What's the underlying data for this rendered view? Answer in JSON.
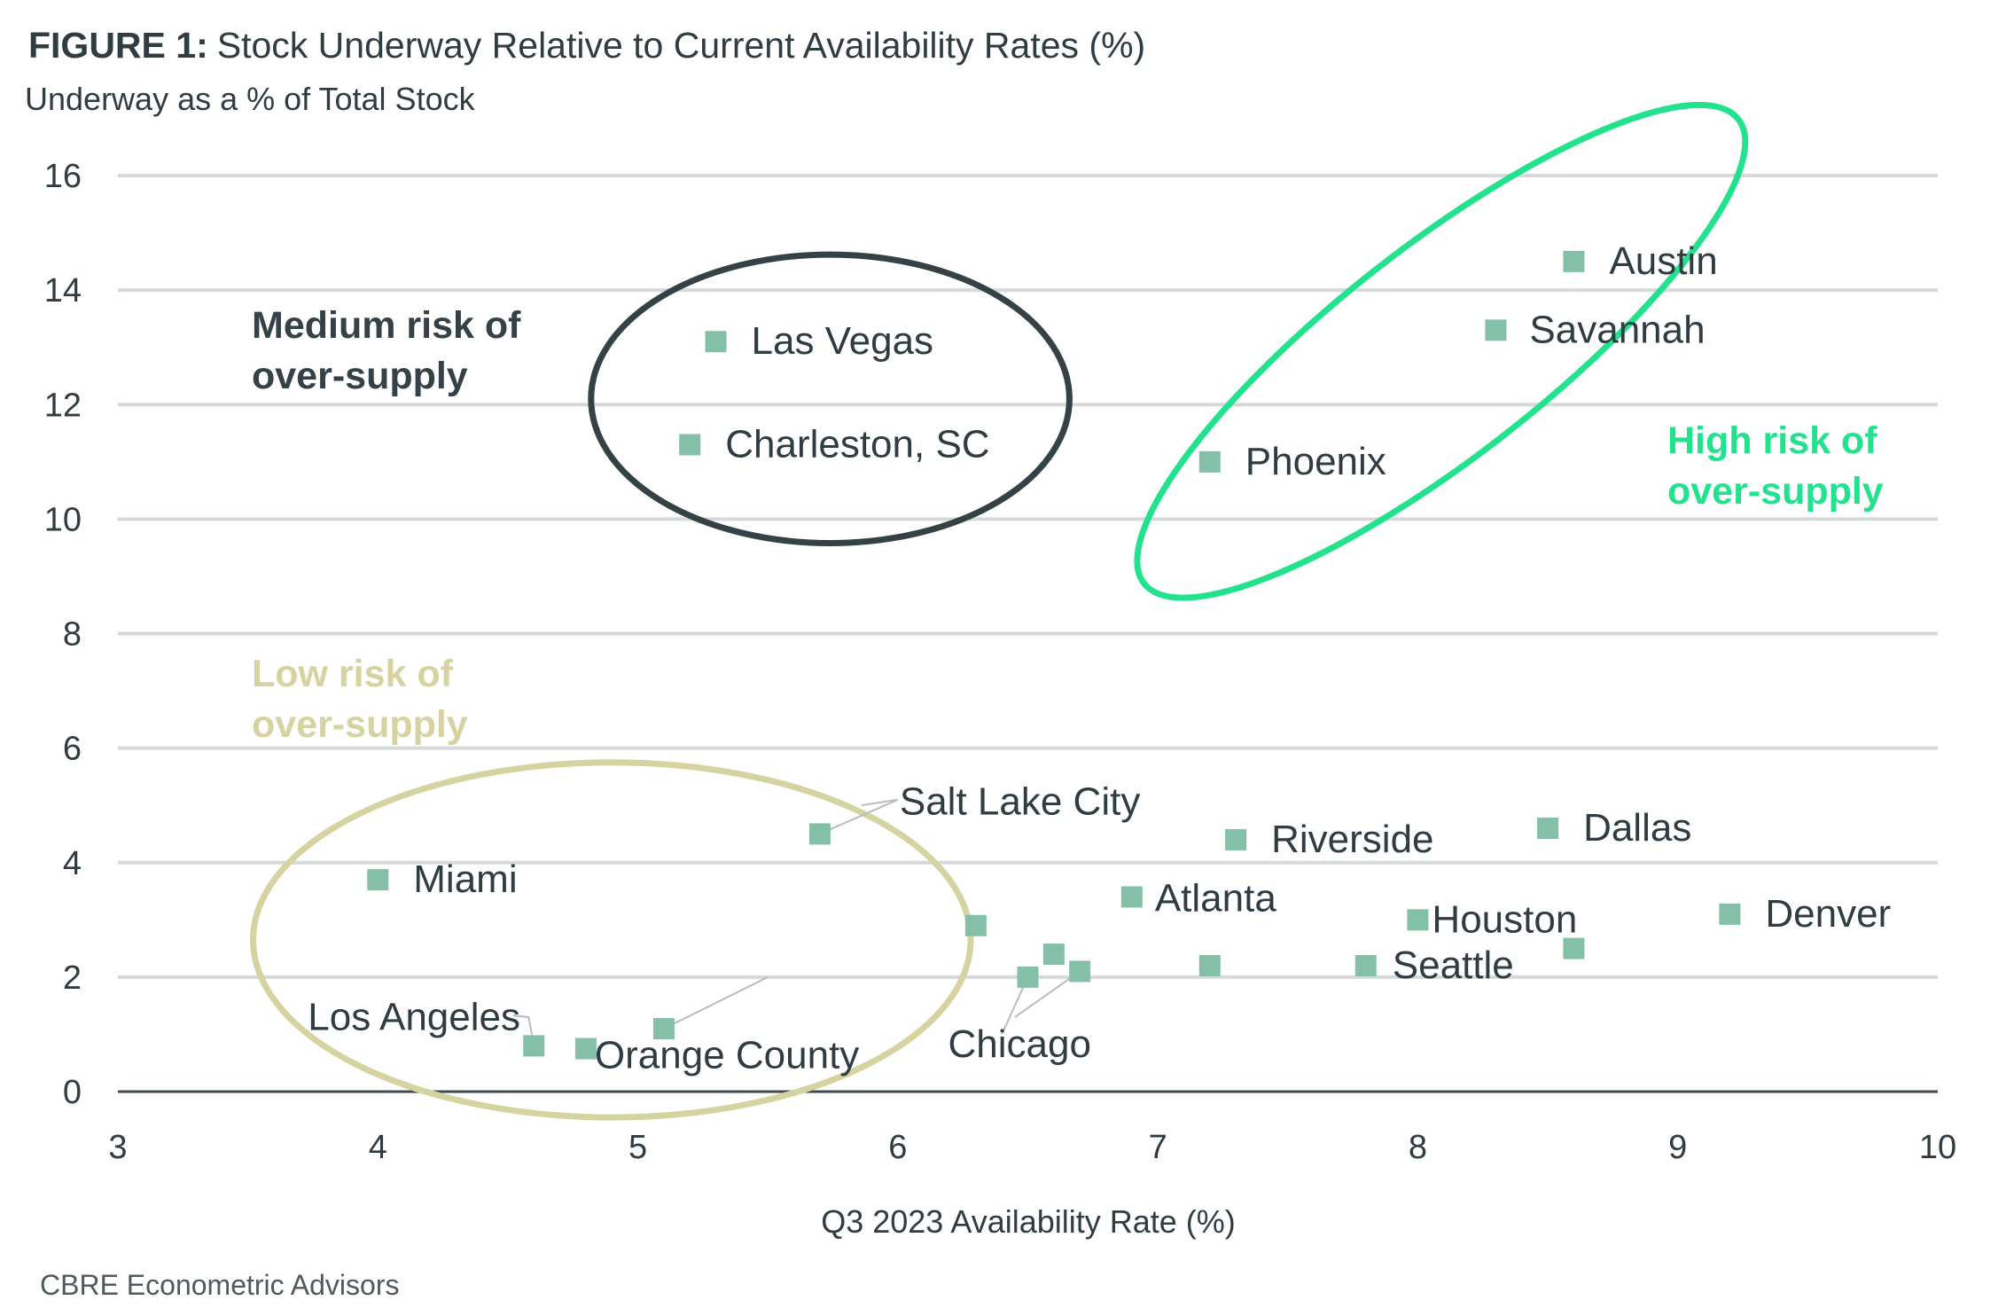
{
  "header": {
    "figure_label": "FIGURE 1:",
    "title": "Stock Underway Relative to Current Availability Rates (%)",
    "subtitle": "Underway as a % of Total Stock"
  },
  "source": "CBRE Econometric Advisors",
  "chart_data": {
    "type": "scatter",
    "title": "Stock Underway Relative to Current Availability Rates (%)",
    "ylabel": "Underway as a % of Total Stock",
    "xlabel": "Q3 2023 Availability Rate (%)",
    "xlim": [
      3,
      10
    ],
    "ylim": [
      0,
      16
    ],
    "xticks": [
      3,
      4,
      5,
      6,
      7,
      8,
      9,
      10
    ],
    "yticks": [
      0,
      2,
      4,
      6,
      8,
      10,
      12,
      14,
      16
    ],
    "grid": true,
    "marker_color": "#84bfa8",
    "points": [
      {
        "label": "Austin",
        "x": 8.6,
        "y": 14.5
      },
      {
        "label": "Savannah",
        "x": 8.3,
        "y": 13.3
      },
      {
        "label": "Las Vegas",
        "x": 5.3,
        "y": 13.1
      },
      {
        "label": "Charleston, SC",
        "x": 5.2,
        "y": 11.3
      },
      {
        "label": "Phoenix",
        "x": 7.2,
        "y": 11.0
      },
      {
        "label": "Salt Lake City",
        "x": 5.7,
        "y": 4.5
      },
      {
        "label": "Riverside",
        "x": 7.3,
        "y": 4.4
      },
      {
        "label": "Dallas",
        "x": 8.5,
        "y": 4.6
      },
      {
        "label": "Miami",
        "x": 4.0,
        "y": 3.7
      },
      {
        "label": "Atlanta",
        "x": 6.9,
        "y": 3.4
      },
      {
        "label": "Denver",
        "x": 9.2,
        "y": 3.1
      },
      {
        "label": "Houston",
        "x": 8.0,
        "y": 3.0
      },
      {
        "label": "",
        "x": 6.3,
        "y": 2.9
      },
      {
        "label": "",
        "x": 8.6,
        "y": 2.5
      },
      {
        "label": "",
        "x": 6.6,
        "y": 2.4
      },
      {
        "label": "",
        "x": 7.2,
        "y": 2.2
      },
      {
        "label": "Seattle",
        "x": 7.8,
        "y": 2.2
      },
      {
        "label": "Chicago",
        "x": 6.5,
        "y": 2.0
      },
      {
        "label": "",
        "x": 6.7,
        "y": 2.1
      },
      {
        "label": "",
        "x": 5.1,
        "y": 1.1
      },
      {
        "label": "Los Angeles",
        "x": 4.6,
        "y": 0.8
      },
      {
        "label": "Orange County",
        "x": 4.8,
        "y": 0.75
      }
    ],
    "annotations": [
      {
        "text": [
          "Medium risk of",
          "over-supply"
        ],
        "color": "#344247"
      },
      {
        "text": [
          "High risk of",
          "over-supply"
        ],
        "color": "#23e28d"
      },
      {
        "text": [
          "Low risk of",
          "over-supply"
        ],
        "color": "#d6d3a1"
      }
    ]
  }
}
